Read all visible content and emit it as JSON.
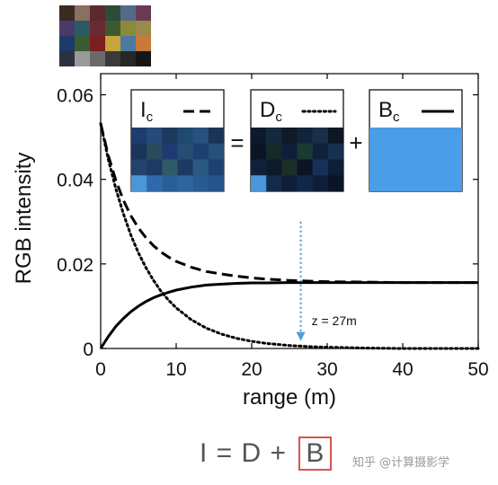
{
  "chart_data": {
    "type": "line",
    "xlabel": "range (m)",
    "ylabel": "RGB intensity",
    "xlim": [
      0,
      50
    ],
    "ylim": [
      0,
      0.065
    ],
    "xticks": [
      0,
      10,
      20,
      30,
      40,
      50
    ],
    "yticks": [
      0,
      0.02,
      0.04,
      0.06
    ],
    "ytick_labels": [
      "0",
      "0.02",
      "0.04",
      "0.06"
    ],
    "grid": false,
    "series": [
      {
        "name": "Ic",
        "style": "dashed",
        "x": [
          0,
          1,
          2,
          3,
          4,
          5,
          6,
          7,
          8,
          9,
          10,
          12,
          14,
          16,
          18,
          20,
          22,
          25,
          28,
          30,
          35,
          40,
          45,
          50
        ],
        "y": [
          0.0532,
          0.0457,
          0.0398,
          0.0351,
          0.0314,
          0.0285,
          0.0262,
          0.0243,
          0.0228,
          0.0216,
          0.0206,
          0.0192,
          0.0182,
          0.0176,
          0.0171,
          0.0167,
          0.0164,
          0.0161,
          0.0159,
          0.0158,
          0.0157,
          0.0156,
          0.0156,
          0.0156
        ]
      },
      {
        "name": "Dc",
        "style": "dotted",
        "x": [
          0,
          1,
          2,
          3,
          4,
          5,
          6,
          7,
          8,
          9,
          10,
          12,
          14,
          16,
          18,
          20,
          22,
          25,
          28,
          30,
          35,
          40,
          45,
          50
        ],
        "y": [
          0.0532,
          0.0448,
          0.0378,
          0.0319,
          0.0268,
          0.0226,
          0.0191,
          0.0161,
          0.0135,
          0.0114,
          0.0096,
          0.0068,
          0.0048,
          0.0034,
          0.0024,
          0.0017,
          0.0012,
          0.0007,
          0.0004,
          0.0003,
          0.0001,
          0.0,
          0.0,
          0.0
        ]
      },
      {
        "name": "Bc",
        "style": "solid",
        "x": [
          0,
          1,
          2,
          3,
          4,
          5,
          6,
          7,
          8,
          9,
          10,
          12,
          14,
          16,
          18,
          20,
          22,
          25,
          28,
          30,
          35,
          40,
          45,
          50
        ],
        "y": [
          0.0,
          0.0028,
          0.0052,
          0.0071,
          0.0087,
          0.01,
          0.0111,
          0.012,
          0.0127,
          0.0133,
          0.0138,
          0.0145,
          0.015,
          0.0152,
          0.0154,
          0.0155,
          0.0155,
          0.0156,
          0.0156,
          0.0156,
          0.0156,
          0.0156,
          0.0156,
          0.0156
        ]
      }
    ],
    "annotation": {
      "text": "z = 27m",
      "x": 26.5,
      "y_top": 0.03,
      "y_bottom": 0.0005,
      "color": "#4a9fd8"
    },
    "legend_panels": [
      {
        "base": "I",
        "sub": "c",
        "style": "dashed"
      },
      {
        "base": "D",
        "sub": "c",
        "style": "dotted"
      },
      {
        "base": "B",
        "sub": "c",
        "style": "solid"
      }
    ],
    "operators": [
      "=",
      "+"
    ],
    "colors": {
      "palette": [
        [
          "#3a2a22",
          "#8a6f63",
          "#5a2a2e",
          "#2e4a3a",
          "#556a8a",
          "#6a3a52"
        ],
        [
          "#4a3a6a",
          "#2a5a62",
          "#6a2a32",
          "#3a5a2e",
          "#8a8a3a",
          "#9a8a4a"
        ],
        [
          "#1e3a6a",
          "#3a5a32",
          "#7a1e22",
          "#c8a43a",
          "#4a7aa0",
          "#c87a3a"
        ],
        [
          "#2a3242",
          "#9a9a9a",
          "#6a6a6a",
          "#3a3a3a",
          "#262626",
          "#161616"
        ]
      ],
      "ic_patch": [
        [
          "#1e3c6e",
          "#264a7a",
          "#1d3a5e",
          "#1e4a6e",
          "#29507e",
          "#1a3458"
        ],
        [
          "#1a355a",
          "#2a4a5e",
          "#1e3a70",
          "#264e70",
          "#1d4070",
          "#24507a"
        ],
        [
          "#23436e",
          "#1e3a62",
          "#2e5a6a",
          "#1c3a64",
          "#2a5a82",
          "#1e4270"
        ],
        [
          "#4a96d8",
          "#2e6aaa",
          "#2a5e96",
          "#2e64a0",
          "#2a5a92",
          "#26528a"
        ]
      ],
      "dc_patch": [
        [
          "#0c1a2c",
          "#16283c",
          "#0e1a26",
          "#12243a",
          "#1a2e48",
          "#0c1624"
        ],
        [
          "#0a1626",
          "#162a28",
          "#0e1e38",
          "#1a3a32",
          "#10223a",
          "#16304e"
        ],
        [
          "#10203a",
          "#0c1a2a",
          "#1a2e2a",
          "#0a1626",
          "#16305a",
          "#0e1e36"
        ],
        [
          "#4a96d8",
          "#142a4a",
          "#0e2038",
          "#12284a",
          "#0e1e36",
          "#0a1628"
        ]
      ],
      "bc_patch": "#4a9de6",
      "equation_box": "#d9534f"
    }
  },
  "equation": {
    "text": "I = D + ",
    "boxed": "B"
  },
  "watermark": "知乎 @计算摄影学"
}
